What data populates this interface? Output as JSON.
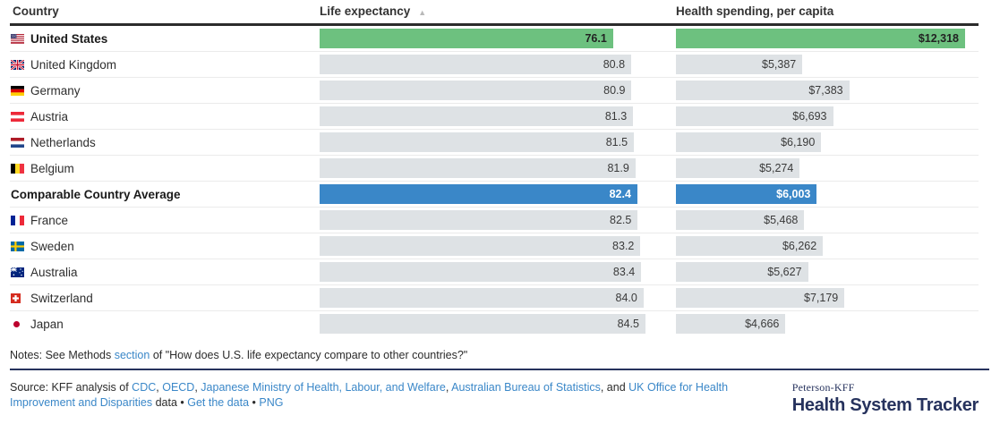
{
  "colors": {
    "highlight_us_green": "#6dc17f",
    "highlight_average_blue": "#3a87c8",
    "bar_default_gray": "#dee2e5",
    "link_blue": "#3a87c8",
    "brand_navy": "#26325d"
  },
  "table": {
    "headers": {
      "country": "Country",
      "life": "Life expectancy",
      "spending": "Health spending, per capita"
    },
    "sort_icon": "▲",
    "axis_max": {
      "life": 84.5,
      "spending": 12318
    },
    "rows": [
      {
        "flag": "us",
        "name": "United States",
        "life": 76.1,
        "life_label": "76.1",
        "spending": 12318,
        "spending_label": "$12,318",
        "style": "us"
      },
      {
        "flag": "gb",
        "name": "United Kingdom",
        "life": 80.8,
        "life_label": "80.8",
        "spending": 5387,
        "spending_label": "$5,387",
        "style": "normal"
      },
      {
        "flag": "de",
        "name": "Germany",
        "life": 80.9,
        "life_label": "80.9",
        "spending": 7383,
        "spending_label": "$7,383",
        "style": "normal"
      },
      {
        "flag": "at",
        "name": "Austria",
        "life": 81.3,
        "life_label": "81.3",
        "spending": 6693,
        "spending_label": "$6,693",
        "style": "normal"
      },
      {
        "flag": "nl",
        "name": "Netherlands",
        "life": 81.5,
        "life_label": "81.5",
        "spending": 6190,
        "spending_label": "$6,190",
        "style": "normal"
      },
      {
        "flag": "be",
        "name": "Belgium",
        "life": 81.9,
        "life_label": "81.9",
        "spending": 5274,
        "spending_label": "$5,274",
        "style": "normal"
      },
      {
        "flag": null,
        "name": "Comparable Country Average",
        "life": 82.4,
        "life_label": "82.4",
        "spending": 6003,
        "spending_label": "$6,003",
        "style": "avg"
      },
      {
        "flag": "fr",
        "name": "France",
        "life": 82.5,
        "life_label": "82.5",
        "spending": 5468,
        "spending_label": "$5,468",
        "style": "normal"
      },
      {
        "flag": "se",
        "name": "Sweden",
        "life": 83.2,
        "life_label": "83.2",
        "spending": 6262,
        "spending_label": "$6,262",
        "style": "normal"
      },
      {
        "flag": "au",
        "name": "Australia",
        "life": 83.4,
        "life_label": "83.4",
        "spending": 5627,
        "spending_label": "$5,627",
        "style": "normal"
      },
      {
        "flag": "ch",
        "name": "Switzerland",
        "life": 84.0,
        "life_label": "84.0",
        "spending": 7179,
        "spending_label": "$7,179",
        "style": "normal"
      },
      {
        "flag": "jp",
        "name": "Japan",
        "life": 84.5,
        "life_label": "84.5",
        "spending": 4666,
        "spending_label": "$4,666",
        "style": "normal"
      }
    ]
  },
  "notes": {
    "segments": [
      {
        "text": "Notes: See Methods "
      },
      {
        "text": "section",
        "link": true
      },
      {
        "text": " of \"How does U.S. life expectancy compare to other countries?\""
      }
    ]
  },
  "source": {
    "segments": [
      {
        "text": "Source: KFF analysis of "
      },
      {
        "text": "CDC",
        "link": true
      },
      {
        "text": ", "
      },
      {
        "text": "OECD",
        "link": true
      },
      {
        "text": ", "
      },
      {
        "text": "Japanese Ministry of Health, Labour, and Welfare",
        "link": true
      },
      {
        "text": ", "
      },
      {
        "text": "Australian Bureau of Statistics",
        "link": true
      },
      {
        "text": ", and "
      },
      {
        "text": "UK Office for Health Improvement and Disparities",
        "link": true
      },
      {
        "text": " data • "
      },
      {
        "text": "Get the data",
        "link": true
      },
      {
        "text": " • "
      },
      {
        "text": "PNG",
        "link": true
      }
    ]
  },
  "logo": {
    "top": "Peterson-KFF",
    "main": "Health System Tracker"
  },
  "chart_data": {
    "type": "bar",
    "title": "",
    "categories": [
      "United States",
      "United Kingdom",
      "Germany",
      "Austria",
      "Netherlands",
      "Belgium",
      "Comparable Country Average",
      "France",
      "Sweden",
      "Australia",
      "Switzerland",
      "Japan"
    ],
    "series": [
      {
        "name": "Life expectancy",
        "values": [
          76.1,
          80.8,
          80.9,
          81.3,
          81.5,
          81.9,
          82.4,
          82.5,
          83.2,
          83.4,
          84.0,
          84.5
        ]
      },
      {
        "name": "Health spending, per capita",
        "values": [
          12318,
          5387,
          7383,
          6693,
          6190,
          5274,
          6003,
          5468,
          6262,
          5627,
          7179,
          4666
        ]
      }
    ],
    "sort": {
      "column": "Life expectancy",
      "direction": "ascending"
    },
    "axis_ranges": {
      "life_expectancy": [
        0,
        84.5
      ],
      "health_spending": [
        0,
        12318
      ]
    },
    "grid": false,
    "legend_position": "none",
    "highlights": {
      "United States": "green",
      "Comparable Country Average": "blue"
    }
  }
}
